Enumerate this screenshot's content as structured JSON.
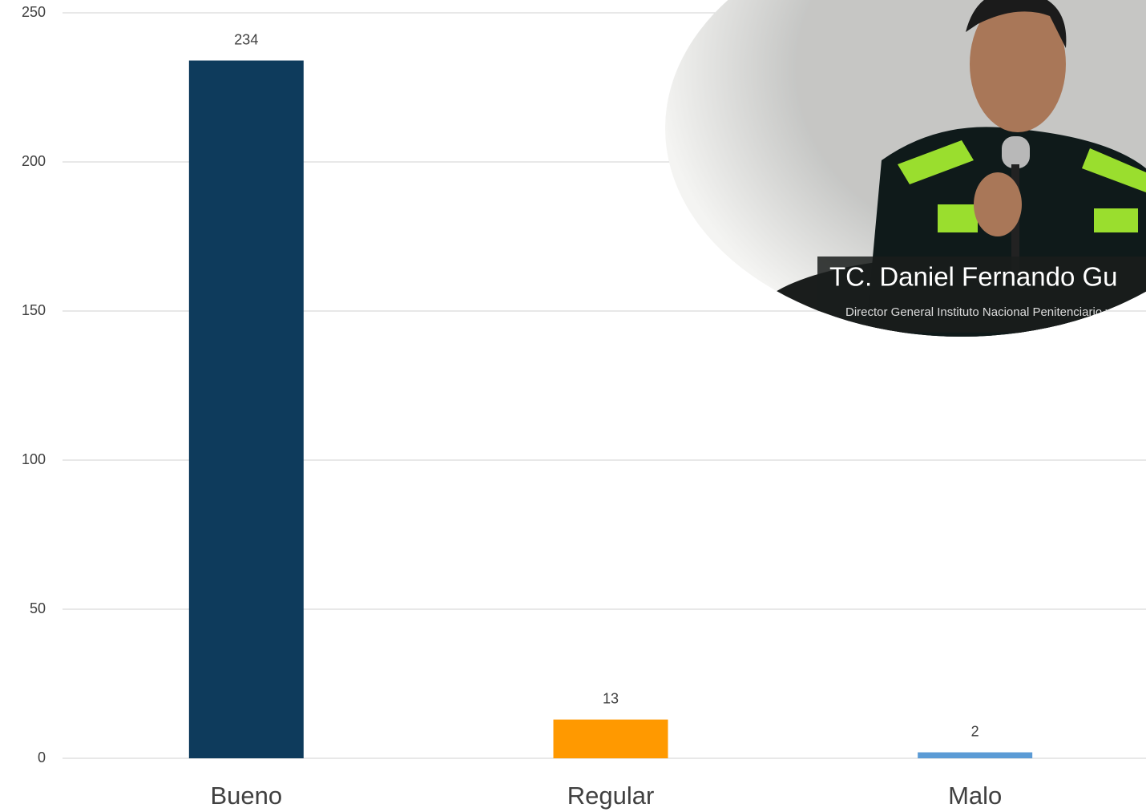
{
  "chart_data": {
    "type": "bar",
    "categories": [
      "Bueno",
      "Regular",
      "Malo"
    ],
    "values": [
      234,
      13,
      2
    ],
    "colors": [
      "#0e3b5c",
      "#ff9900",
      "#5b9bd5"
    ],
    "ylim": [
      0,
      250
    ],
    "yticks": [
      0,
      50,
      100,
      150,
      200,
      250
    ],
    "grid": true
  },
  "overlay": {
    "name": "TC. Daniel Fernando Gu",
    "subtitle": "Director General Instituto Nacional Penitenciario y"
  }
}
